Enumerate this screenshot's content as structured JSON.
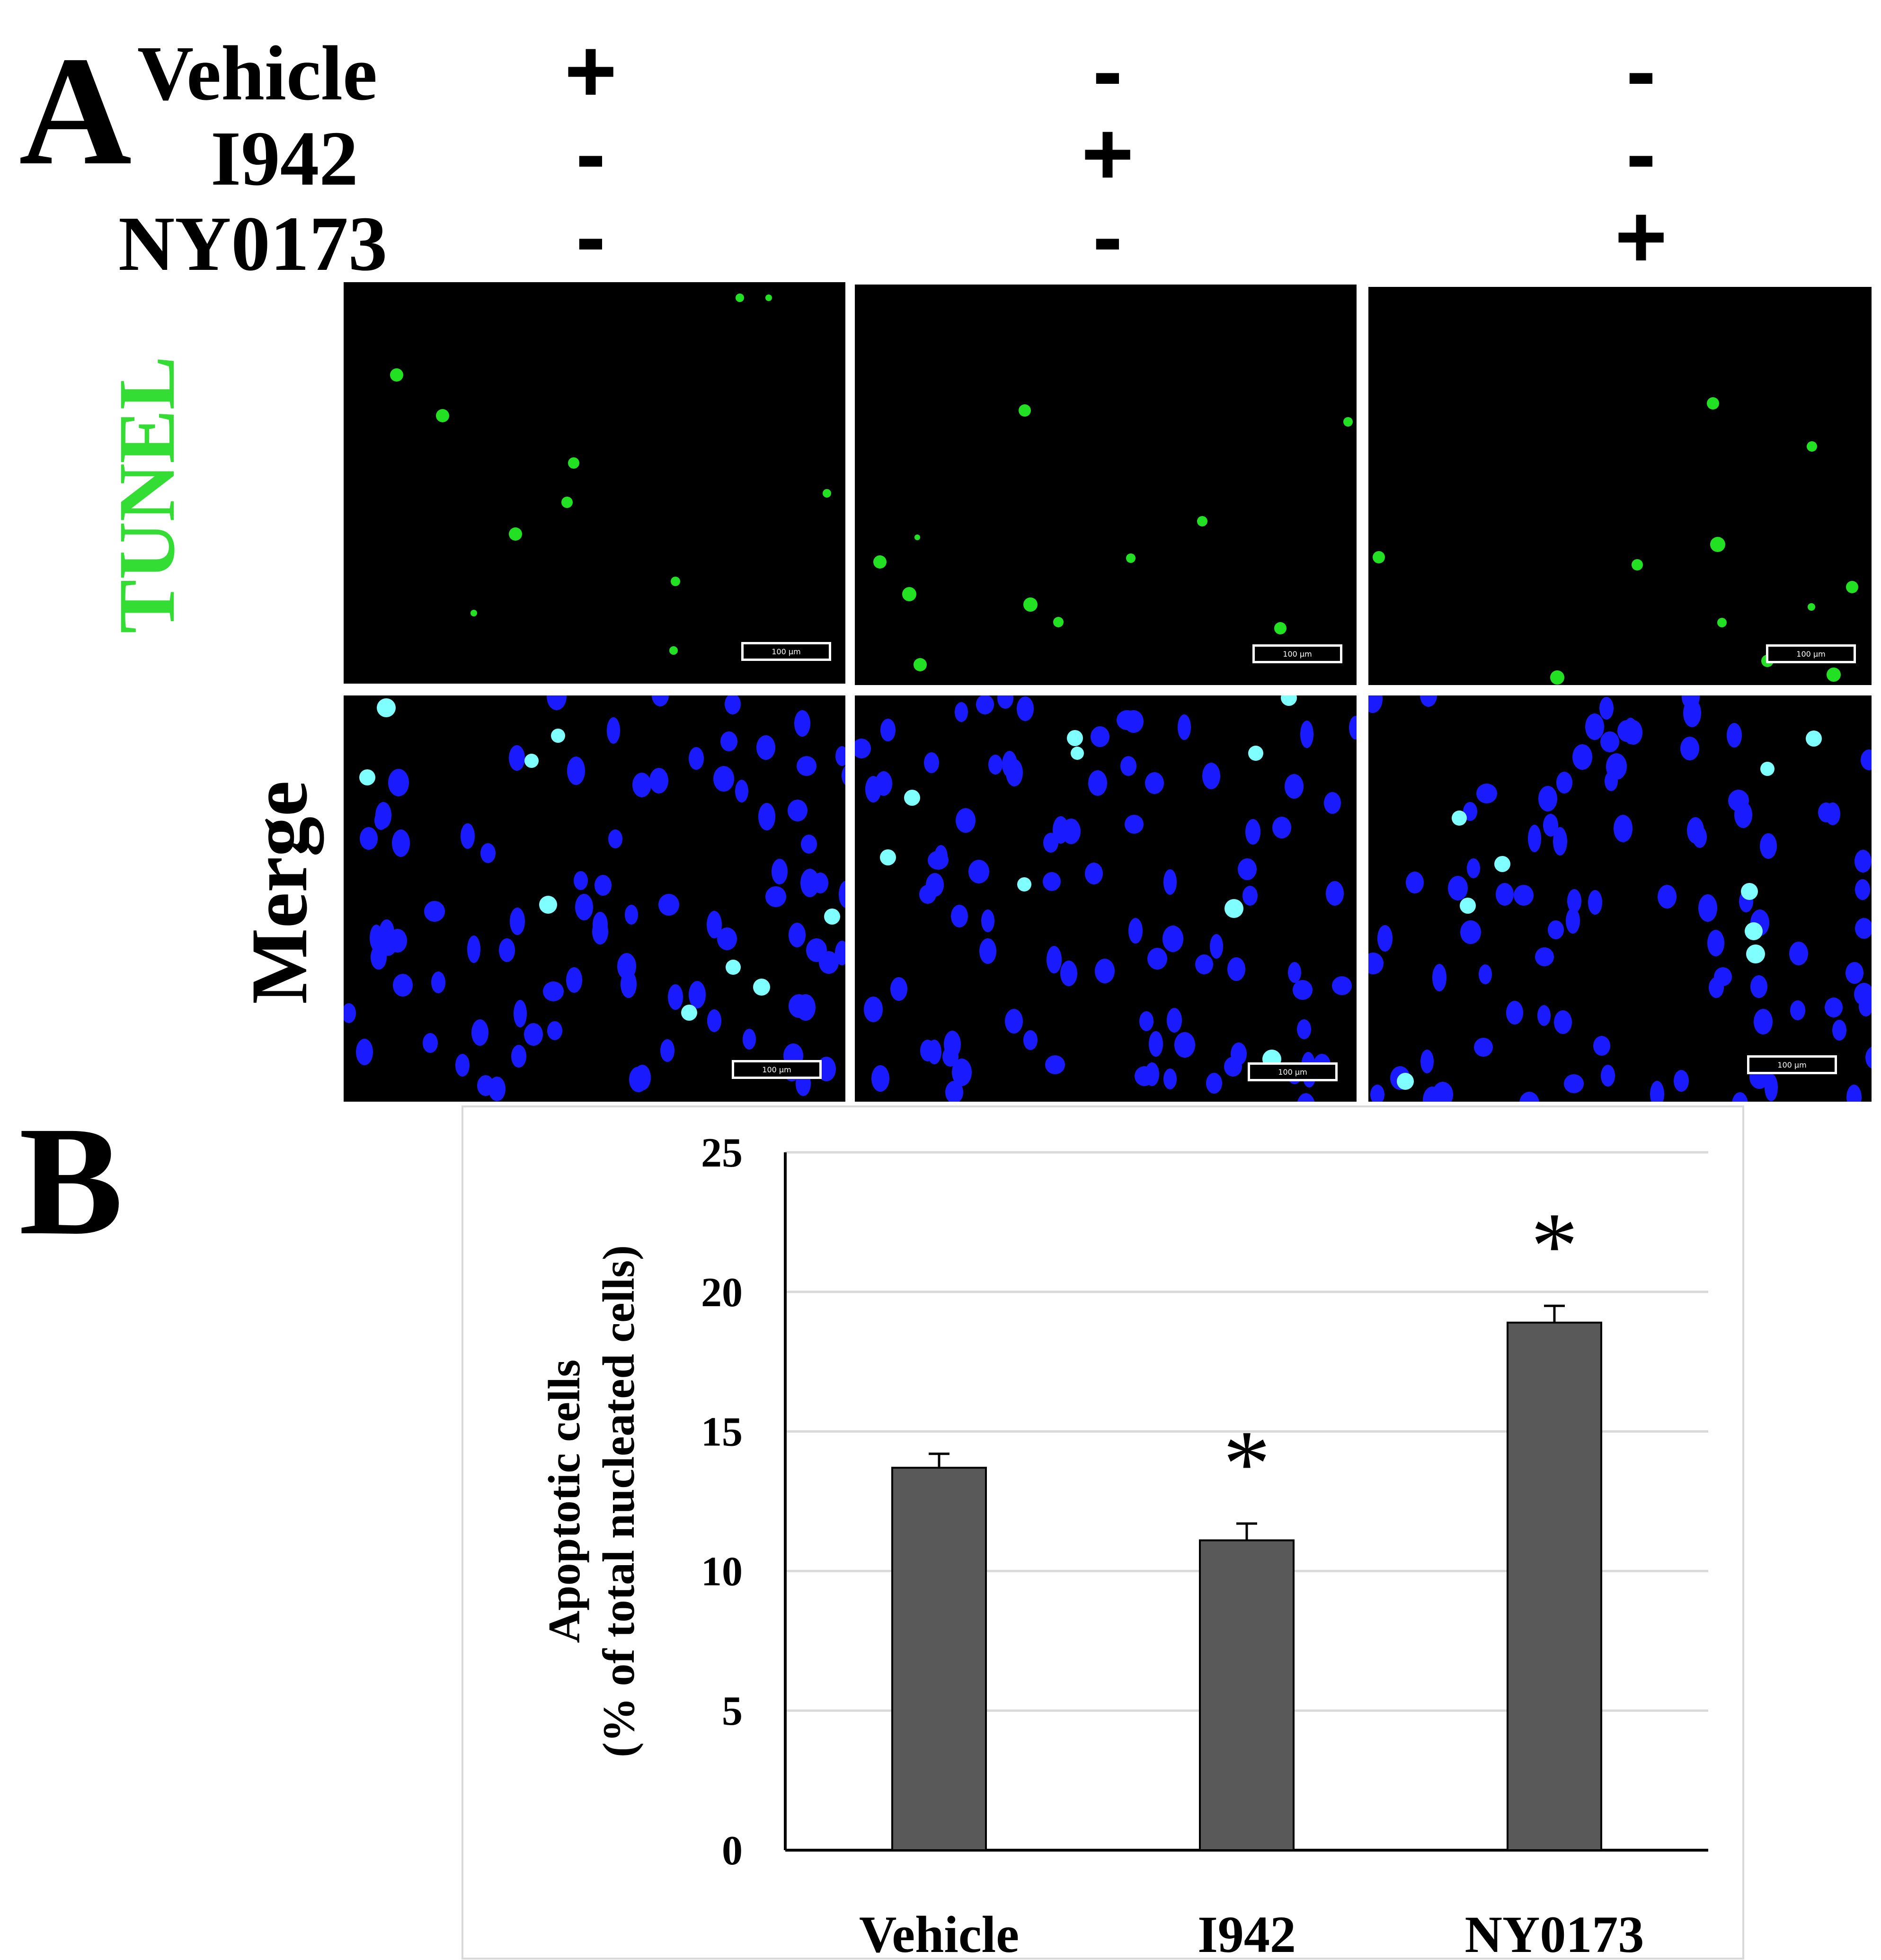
{
  "panel_a": {
    "letter": "A",
    "treatments": [
      {
        "name": "Vehicle",
        "signs": [
          "+",
          "-",
          "-"
        ]
      },
      {
        "name": "I942",
        "signs": [
          "-",
          "+",
          "-"
        ]
      },
      {
        "name": "NY0173",
        "signs": [
          "-",
          "-",
          "+"
        ]
      }
    ],
    "rows": [
      {
        "label": "TUNEL",
        "color": "#33dd33"
      },
      {
        "label": "Merge",
        "color": "#000000"
      }
    ],
    "scale_bar_label": "100 µm",
    "colors": {
      "tunel_green": "#22e022",
      "nucleus_blue": "#1a1aff",
      "merge_cyan": "#7fffff",
      "background": "#000000"
    }
  },
  "panel_b": {
    "letter": "B"
  },
  "chart_data": {
    "type": "bar",
    "categories": [
      "Vehicle",
      "I942",
      "NY0173"
    ],
    "values": [
      13.7,
      11.1,
      18.9
    ],
    "errors": [
      0.5,
      0.6,
      0.6
    ],
    "significance": [
      "",
      "*",
      "*"
    ],
    "ylabel_line1": "Apoptotic cells",
    "ylabel_line2": "(% of total nucleated cells)",
    "ylim": [
      0,
      25
    ],
    "yticks": [
      0,
      5,
      10,
      15,
      20,
      25
    ],
    "grid": true,
    "bar_color": "#595959"
  }
}
